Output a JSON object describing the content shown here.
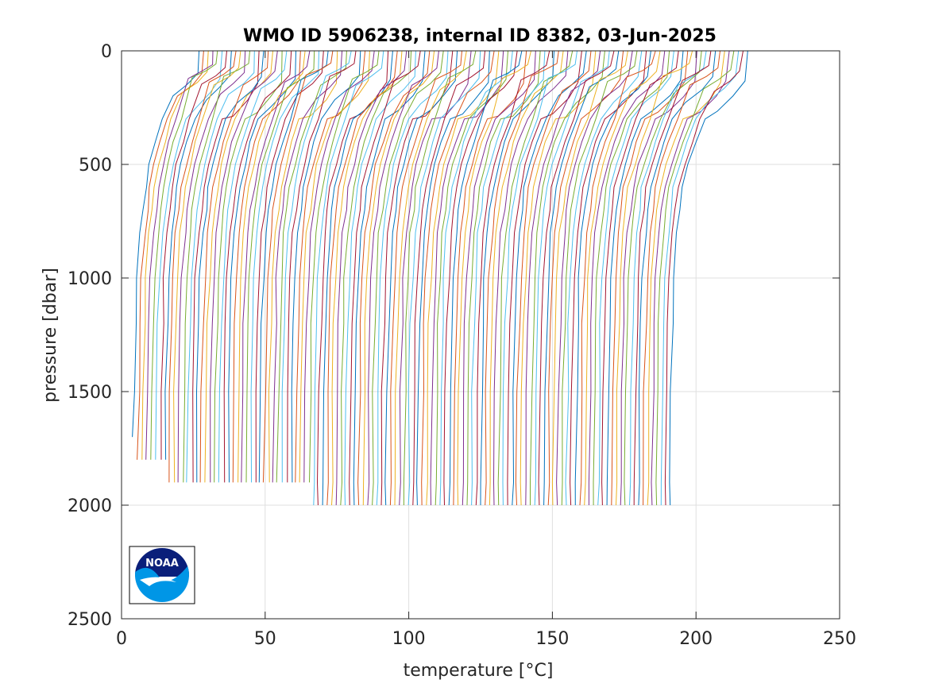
{
  "chart_data": {
    "type": "line",
    "title": "WMO ID 5906238, internal ID 8382, 03-Jun-2025",
    "xlabel": "temperature [°C]",
    "ylabel": "pressure [dbar]",
    "xlim": [
      0,
      250
    ],
    "ylim": [
      0,
      2500
    ],
    "y_reversed": true,
    "grid": true,
    "x_ticks": [
      "0",
      "50",
      "100",
      "150",
      "200",
      "250"
    ],
    "y_ticks": [
      "0",
      "500",
      "1000",
      "1500",
      "2000",
      "2500"
    ],
    "profile_count": 120,
    "profile_offset_per_cycle": 1.55,
    "first_profile_surface_temp": 27,
    "last_profile_surface_temp": 218,
    "first_profile_bottom_temp": 4,
    "last_profile_bottom_temp": 191,
    "representative_profile": {
      "pressure": [
        0,
        100,
        150,
        200,
        300,
        400,
        500,
        600,
        700,
        800,
        1000,
        1200,
        1500,
        1900,
        2000
      ],
      "temperature": [
        27,
        26.5,
        23,
        18,
        14,
        11.5,
        9.5,
        8,
        7,
        6,
        5,
        4.5,
        4,
        3.7,
        3.6
      ]
    },
    "series_colors": [
      "#0072bd",
      "#d95319",
      "#edb120",
      "#7e2f8e",
      "#77ac30",
      "#4dbeee",
      "#a2142f"
    ]
  },
  "logo": {
    "text": "NOAA",
    "colors": {
      "top": "#0a1f7a",
      "bottom": "#0096e6"
    }
  }
}
